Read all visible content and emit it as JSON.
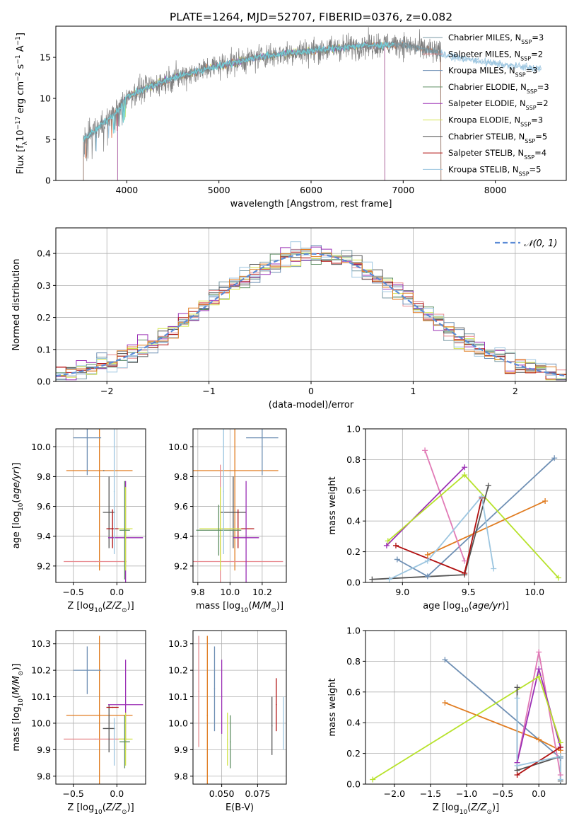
{
  "figure_title": "PLATE=1264, MJD=52707, FIBERID=0376, z=0.082",
  "colors": {
    "miles_chabrier": "#7a9aa4",
    "miles_salpeter": "#e7898e",
    "miles_kroupa": "#6e8fb4",
    "elodie_chabrier": "#5f8f64",
    "elodie_salpeter": "#9b30b5",
    "elodie_kroupa": "#d2e34a",
    "stelib_chabrier": "#555555",
    "stelib_salpeter": "#b01010",
    "stelib_kroupa": "#9dc6e0",
    "spectrum_data": "#7f7f7f",
    "normal_curve": "#5b8bd6"
  },
  "chart_data": [
    {
      "id": "spectrum",
      "type": "line",
      "xlabel": "wavelength [Angstrom, rest frame]",
      "ylabel": "Flux [f_λ10^-17 erg cm^-2 s^-1 A^-1]",
      "xlim": [
        3230,
        8770
      ],
      "ylim": [
        0,
        18.8
      ],
      "xticks": [
        4000,
        5000,
        6000,
        7000,
        8000
      ],
      "yticks": [
        0,
        5,
        10,
        15
      ],
      "grid": false,
      "legend_position": "top-right",
      "legend": [
        {
          "prefix": "Chabrier MILES, N",
          "sub": "SSP",
          "suffix": "=3",
          "color_key": "miles_chabrier"
        },
        {
          "prefix": "Salpeter MILES, N",
          "sub": "SSP",
          "suffix": "=2",
          "color_key": "miles_salpeter"
        },
        {
          "prefix": "Kroupa MILES, N",
          "sub": "SSP",
          "suffix": "=3",
          "color_key": "miles_kroupa"
        },
        {
          "prefix": "Chabrier ELODIE, N",
          "sub": "SSP",
          "suffix": "=3",
          "color_key": "elodie_chabrier"
        },
        {
          "prefix": "Salpeter ELODIE, N",
          "sub": "SSP",
          "suffix": "=2",
          "color_key": "elodie_salpeter"
        },
        {
          "prefix": "Kroupa ELODIE, N",
          "sub": "SSP",
          "suffix": "=3",
          "color_key": "elodie_kroupa"
        },
        {
          "prefix": "Chabrier STELIB, N",
          "sub": "SSP",
          "suffix": "=5",
          "color_key": "stelib_chabrier"
        },
        {
          "prefix": "Salpeter STELIB, N",
          "sub": "SSP",
          "suffix": "=4",
          "color_key": "stelib_salpeter"
        },
        {
          "prefix": "Kroupa STELIB, N",
          "sub": "SSP",
          "suffix": "=5",
          "color_key": "stelib_kroupa"
        }
      ],
      "continuum": {
        "x": [
          3530,
          3700,
          3900,
          4000,
          4200,
          4500,
          5000,
          5500,
          6000,
          6500,
          7000,
          7500,
          8000,
          8500
        ],
        "y": [
          5.0,
          6.5,
          8.5,
          10.2,
          11.2,
          12.5,
          14.0,
          15.2,
          15.8,
          16.4,
          16.6,
          15.2,
          14.2,
          13.6
        ]
      },
      "model_ranges": {
        "miles": [
          3530,
          7410
        ],
        "elodie": [
          3900,
          6800
        ],
        "stelib": [
          3530,
          8500
        ]
      }
    },
    {
      "id": "residual_hist",
      "type": "bar",
      "xlabel": "(data-model)/error",
      "ylabel": "Normed distribution",
      "xlim": [
        -2.5,
        2.5
      ],
      "ylim": [
        0,
        0.48
      ],
      "xticks": [
        -2,
        -1,
        0,
        1,
        2
      ],
      "yticks": [
        0.0,
        0.1,
        0.2,
        0.3,
        0.4
      ],
      "grid": true,
      "legend_position": "top-right",
      "curve_label": "𝒩(0, 1)",
      "bin_edges_start": -2.5,
      "bin_width": 0.1,
      "n_bins": 50
    },
    {
      "id": "age_vs_Z",
      "type": "scatter",
      "xlabel": "Z [log10(Z/Z⊙)]",
      "ylabel": "age  [log10(age/yr)]",
      "xlim": [
        -0.7,
        0.33
      ],
      "ylim": [
        9.09,
        10.12
      ],
      "xticks": [
        -0.5,
        0.0
      ],
      "yticks": [
        9.2,
        9.4,
        9.6,
        9.8,
        10.0
      ],
      "grid": true,
      "points": [
        {
          "color_key": "miles_kroupa",
          "x": -0.34,
          "xerr": 0.16,
          "y": 10.06,
          "yerr": 0.25
        },
        {
          "color_key": "stelib_chabrier",
          "x": -0.15,
          "xerr": 0.0,
          "y": 9.84,
          "yerr": 0.0
        },
        {
          "color_key": "miles_salpeter",
          "x": -0.25,
          "xerr": 0.36,
          "y": 9.23,
          "yerr": 0.0
        },
        {
          "color_key": "miles_chabrier",
          "x": -0.06,
          "xerr": 0.0,
          "y": 9.45,
          "yerr": 0.0
        },
        {
          "color_key": "stelib_chabrier",
          "x": -0.09,
          "xerr": 0.07,
          "y": 9.56,
          "yerr": 0.24
        },
        {
          "color_key": "stelib_salpeter",
          "x": -0.05,
          "xerr": 0.07,
          "y": 9.45,
          "yerr": 0.13
        },
        {
          "color_key": "elodie_salpeter",
          "x": 0.1,
          "xerr": 0.2,
          "y": 9.39,
          "yerr": 0.38
        },
        {
          "color_key": "elodie_kroupa",
          "x": 0.1,
          "xerr": 0.08,
          "y": 9.45,
          "yerr": 0.28
        },
        {
          "color_key": "elodie_chabrier",
          "x": 0.09,
          "xerr": 0.06,
          "y": 9.44,
          "yerr": 0.33
        },
        {
          "color_key": "stelib_kroupa",
          "x": -0.03,
          "xerr": 0.0,
          "y": 9.7,
          "yerr": 0.42
        }
      ],
      "orange_point": {
        "x": -0.2,
        "xerr": 0.38,
        "y": 9.84,
        "yerr": 0.67
      }
    },
    {
      "id": "age_vs_mass",
      "type": "scatter",
      "xlabel": "mass [log10(M/M⊙)]",
      "ylabel": "",
      "xlim": [
        9.77,
        10.35
      ],
      "ylim": [
        9.09,
        10.12
      ],
      "xticks": [
        9.8,
        10.0,
        10.2
      ],
      "yticks": [
        9.2,
        9.4,
        9.6,
        9.8,
        10.0
      ],
      "grid": true,
      "points": [
        {
          "color_key": "miles_kroupa",
          "x": 10.2,
          "xerr": 0.1,
          "y": 10.06,
          "yerr": 0.25
        },
        {
          "color_key": "miles_salpeter",
          "x": 9.94,
          "xerr": 0.39,
          "y": 9.23,
          "yerr": 0.65
        },
        {
          "color_key": "stelib_chabrier",
          "x": 10.02,
          "xerr": 0.08,
          "y": 9.56,
          "yerr": 0.24
        },
        {
          "color_key": "stelib_salpeter",
          "x": 10.05,
          "xerr": 0.1,
          "y": 9.45,
          "yerr": 0.13
        },
        {
          "color_key": "elodie_salpeter",
          "x": 10.1,
          "xerr": 0.08,
          "y": 9.39,
          "yerr": 0.38
        },
        {
          "color_key": "elodie_kroupa",
          "x": 9.94,
          "xerr": 0.13,
          "y": 9.45,
          "yerr": 0.28
        },
        {
          "color_key": "elodie_chabrier",
          "x": 9.93,
          "xerr": 0.14,
          "y": 9.44,
          "yerr": 0.17
        },
        {
          "color_key": "stelib_kroupa",
          "x": 9.96,
          "xerr": 0.0,
          "y": 9.7,
          "yerr": 0.42
        }
      ],
      "orange_point": {
        "x": 10.03,
        "xerr": 0.27,
        "y": 9.84,
        "yerr": 0.67
      }
    },
    {
      "id": "weight_vs_age",
      "type": "line",
      "xlabel": "age  [log10(age/yr)]",
      "ylabel": "mass weight",
      "xlim": [
        8.72,
        10.24
      ],
      "ylim": [
        0.0,
        1.0
      ],
      "xticks": [
        9.0,
        9.5,
        10.0
      ],
      "yticks": [
        0.0,
        0.2,
        0.4,
        0.6,
        0.8,
        1.0
      ],
      "grid": true,
      "series": [
        {
          "color_key": "miles_kroupa",
          "x": [
            8.96,
            9.19,
            10.15
          ],
          "y": [
            0.15,
            0.04,
            0.81
          ]
        },
        {
          "color_key": "orange",
          "x": [
            9.19,
            10.08
          ],
          "y": [
            0.18,
            0.53
          ]
        },
        {
          "color_key": "pink",
          "x": [
            9.17,
            9.47
          ],
          "y": [
            0.86,
            0.14
          ]
        },
        {
          "color_key": "elodie_salpeter",
          "x": [
            8.88,
            9.47
          ],
          "y": [
            0.24,
            0.75
          ]
        },
        {
          "color_key": "lime",
          "x": [
            8.89,
            9.47,
            10.18
          ],
          "y": [
            0.27,
            0.7,
            0.03
          ]
        },
        {
          "color_key": "stelib_chabrier",
          "x": [
            8.77,
            9.47,
            9.65
          ],
          "y": [
            0.02,
            0.05,
            0.63
          ]
        },
        {
          "color_key": "stelib_salpeter",
          "x": [
            8.95,
            9.47,
            9.6
          ],
          "y": [
            0.24,
            0.06,
            0.55
          ]
        },
        {
          "color_key": "stelib_kroupa",
          "x": [
            8.9,
            9.19,
            9.6,
            9.69
          ],
          "y": [
            0.02,
            0.14,
            0.56,
            0.09
          ]
        }
      ]
    },
    {
      "id": "mass_vs_Z",
      "type": "scatter",
      "xlabel": "Z [log10(Z/Z⊙)]",
      "ylabel": "mass [log10(M/M⊙)]",
      "xlim": [
        -0.7,
        0.33
      ],
      "ylim": [
        9.77,
        10.35
      ],
      "xticks": [
        -0.5,
        0.0
      ],
      "yticks": [
        9.8,
        9.9,
        10.0,
        10.1,
        10.2,
        10.3
      ],
      "grid": true,
      "points": [
        {
          "color_key": "miles_kroupa",
          "x": -0.34,
          "xerr": 0.16,
          "y": 10.2,
          "yerr": 0.09
        },
        {
          "color_key": "miles_salpeter",
          "x": -0.25,
          "xerr": 0.36,
          "y": 9.94,
          "yerr": 0.0
        },
        {
          "color_key": "stelib_chabrier",
          "x": -0.09,
          "xerr": 0.07,
          "y": 9.98,
          "yerr": 0.09
        },
        {
          "color_key": "stelib_salpeter",
          "x": -0.05,
          "xerr": 0.07,
          "y": 10.06,
          "yerr": 0.0
        },
        {
          "color_key": "elodie_salpeter",
          "x": 0.1,
          "xerr": 0.2,
          "y": 10.07,
          "yerr": 0.17
        },
        {
          "color_key": "elodie_kroupa",
          "x": 0.1,
          "xerr": 0.08,
          "y": 9.94,
          "yerr": 0.1
        },
        {
          "color_key": "elodie_chabrier",
          "x": 0.09,
          "xerr": 0.06,
          "y": 9.93,
          "yerr": 0.1
        },
        {
          "color_key": "stelib_kroupa",
          "x": -0.03,
          "xerr": 0.0,
          "y": 9.93,
          "yerr": 0.09
        }
      ],
      "orange_point": {
        "x": -0.2,
        "xerr": 0.38,
        "y": 10.03,
        "yerr": 0.3
      }
    },
    {
      "id": "mass_vs_ebv",
      "type": "scatter",
      "xlabel": "E(B-V)",
      "ylabel": "",
      "xlim": [
        0.03,
        0.095
      ],
      "ylim": [
        9.77,
        10.35
      ],
      "xticks": [
        0.05,
        0.075
      ],
      "yticks": [
        9.8,
        9.9,
        10.0,
        10.1,
        10.2,
        10.3
      ],
      "grid": true,
      "points": [
        {
          "color_key": "miles_salpeter",
          "x": 0.034,
          "xerr": 0.0,
          "y": 10.12,
          "yerr": 0.21
        },
        {
          "color_key": "orange",
          "x": 0.04,
          "xerr": 0.0,
          "y": 10.03,
          "yerr": 0.3
        },
        {
          "color_key": "miles_kroupa",
          "x": 0.045,
          "xerr": 0.0,
          "y": 10.13,
          "yerr": 0.16
        },
        {
          "color_key": "elodie_salpeter",
          "x": 0.05,
          "xerr": 0.0,
          "y": 10.1,
          "yerr": 0.14
        },
        {
          "color_key": "elodie_kroupa",
          "x": 0.054,
          "xerr": 0.0,
          "y": 9.94,
          "yerr": 0.1
        },
        {
          "color_key": "elodie_chabrier",
          "x": 0.056,
          "xerr": 0.0,
          "y": 9.93,
          "yerr": 0.1
        },
        {
          "color_key": "stelib_chabrier",
          "x": 0.085,
          "xerr": 0.0,
          "y": 9.99,
          "yerr": 0.11
        },
        {
          "color_key": "stelib_salpeter",
          "x": 0.088,
          "xerr": 0.0,
          "y": 10.07,
          "yerr": 0.1
        },
        {
          "color_key": "stelib_kroupa",
          "x": 0.093,
          "xerr": 0.0,
          "y": 10.0,
          "yerr": 0.1
        }
      ]
    },
    {
      "id": "weight_vs_Z",
      "type": "line",
      "xlabel": "Z [log10(Z/Z⊙)]",
      "ylabel": "mass weight",
      "xlim": [
        -2.4,
        0.38
      ],
      "ylim": [
        0.0,
        1.0
      ],
      "xticks": [
        -2.0,
        -1.5,
        -1.0,
        -0.5,
        0.0
      ],
      "yticks": [
        0.0,
        0.2,
        0.4,
        0.6,
        0.8,
        1.0
      ],
      "grid": true,
      "series": [
        {
          "color_key": "miles_kroupa",
          "x": [
            -1.3,
            0.3
          ],
          "y": [
            0.81,
            0.17
          ]
        },
        {
          "color_key": "orange",
          "x": [
            -1.3,
            0.0,
            0.3
          ],
          "y": [
            0.53,
            0.29,
            0.22
          ]
        },
        {
          "color_key": "pink",
          "x": [
            -0.3,
            0.0,
            0.3
          ],
          "y": [
            0.14,
            0.86,
            0.06
          ]
        },
        {
          "color_key": "elodie_salpeter",
          "x": [
            -0.3,
            0.0,
            0.3
          ],
          "y": [
            0.14,
            0.75,
            0.24
          ]
        },
        {
          "color_key": "lime",
          "x": [
            -2.3,
            0.0,
            0.3
          ],
          "y": [
            0.03,
            0.7,
            0.27
          ]
        },
        {
          "color_key": "stelib_chabrier",
          "x": [
            -0.3,
            -0.3,
            0.3,
            0.3
          ],
          "y": [
            0.63,
            0.09,
            0.18,
            0.02
          ]
        },
        {
          "color_key": "stelib_salpeter",
          "x": [
            -0.3,
            0.3
          ],
          "y": [
            0.06,
            0.24
          ]
        },
        {
          "color_key": "stelib_kroupa",
          "x": [
            -0.3,
            -0.3,
            0.3,
            0.3
          ],
          "y": [
            0.56,
            0.12,
            0.18,
            0.03
          ]
        }
      ]
    }
  ],
  "extra_colors": {
    "orange": "#e07b1f",
    "pink": "#e17ab6",
    "lime": "#b7e22b"
  }
}
